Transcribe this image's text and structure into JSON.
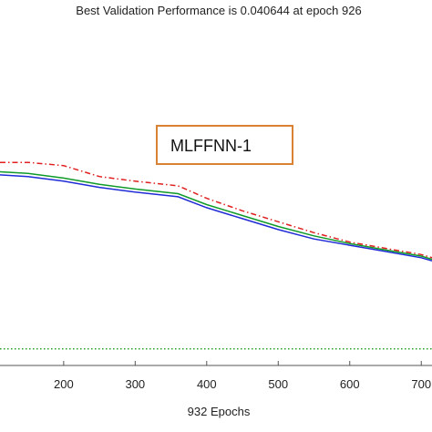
{
  "chart_data": {
    "type": "line",
    "title": "Best Validation Performance is 0.040644 at epoch 926",
    "xlabel": "932 Epochs",
    "ylabel": "",
    "xlim": [
      111,
      715
    ],
    "ylim": [
      0.03,
      0.25
    ],
    "x_ticks": [
      200,
      300,
      400,
      500,
      600,
      700
    ],
    "grid": false,
    "series": [
      {
        "color": "#1f2bd6",
        "style": "solid",
        "x": [
          111,
          150,
          200,
          250,
          300,
          360,
          400,
          450,
          500,
          550,
          600,
          650,
          700,
          715
        ],
        "y": [
          0.152,
          0.151,
          0.148,
          0.144,
          0.141,
          0.138,
          0.131,
          0.124,
          0.117,
          0.111,
          0.107,
          0.103,
          0.099,
          0.097
        ]
      },
      {
        "color": "#0f9a2a",
        "style": "solid",
        "x": [
          111,
          150,
          200,
          250,
          300,
          360,
          400,
          450,
          500,
          550,
          600,
          650,
          700,
          715
        ],
        "y": [
          0.154,
          0.153,
          0.15,
          0.146,
          0.143,
          0.14,
          0.133,
          0.126,
          0.119,
          0.113,
          0.108,
          0.104,
          0.1,
          0.098
        ]
      },
      {
        "color": "#e02020",
        "style": "dashdot",
        "x": [
          111,
          150,
          200,
          250,
          300,
          360,
          400,
          450,
          500,
          550,
          600,
          650,
          700,
          715
        ],
        "y": [
          0.16,
          0.16,
          0.158,
          0.151,
          0.148,
          0.145,
          0.137,
          0.129,
          0.122,
          0.115,
          0.109,
          0.105,
          0.101,
          0.099
        ]
      },
      {
        "color": "#2aa02a",
        "style": "dotted",
        "x": [
          111,
          715
        ],
        "y": [
          0.0406,
          0.0406
        ]
      }
    ],
    "annotation": {
      "text": "MLFFNN-1",
      "border_color": "#d98234"
    }
  }
}
